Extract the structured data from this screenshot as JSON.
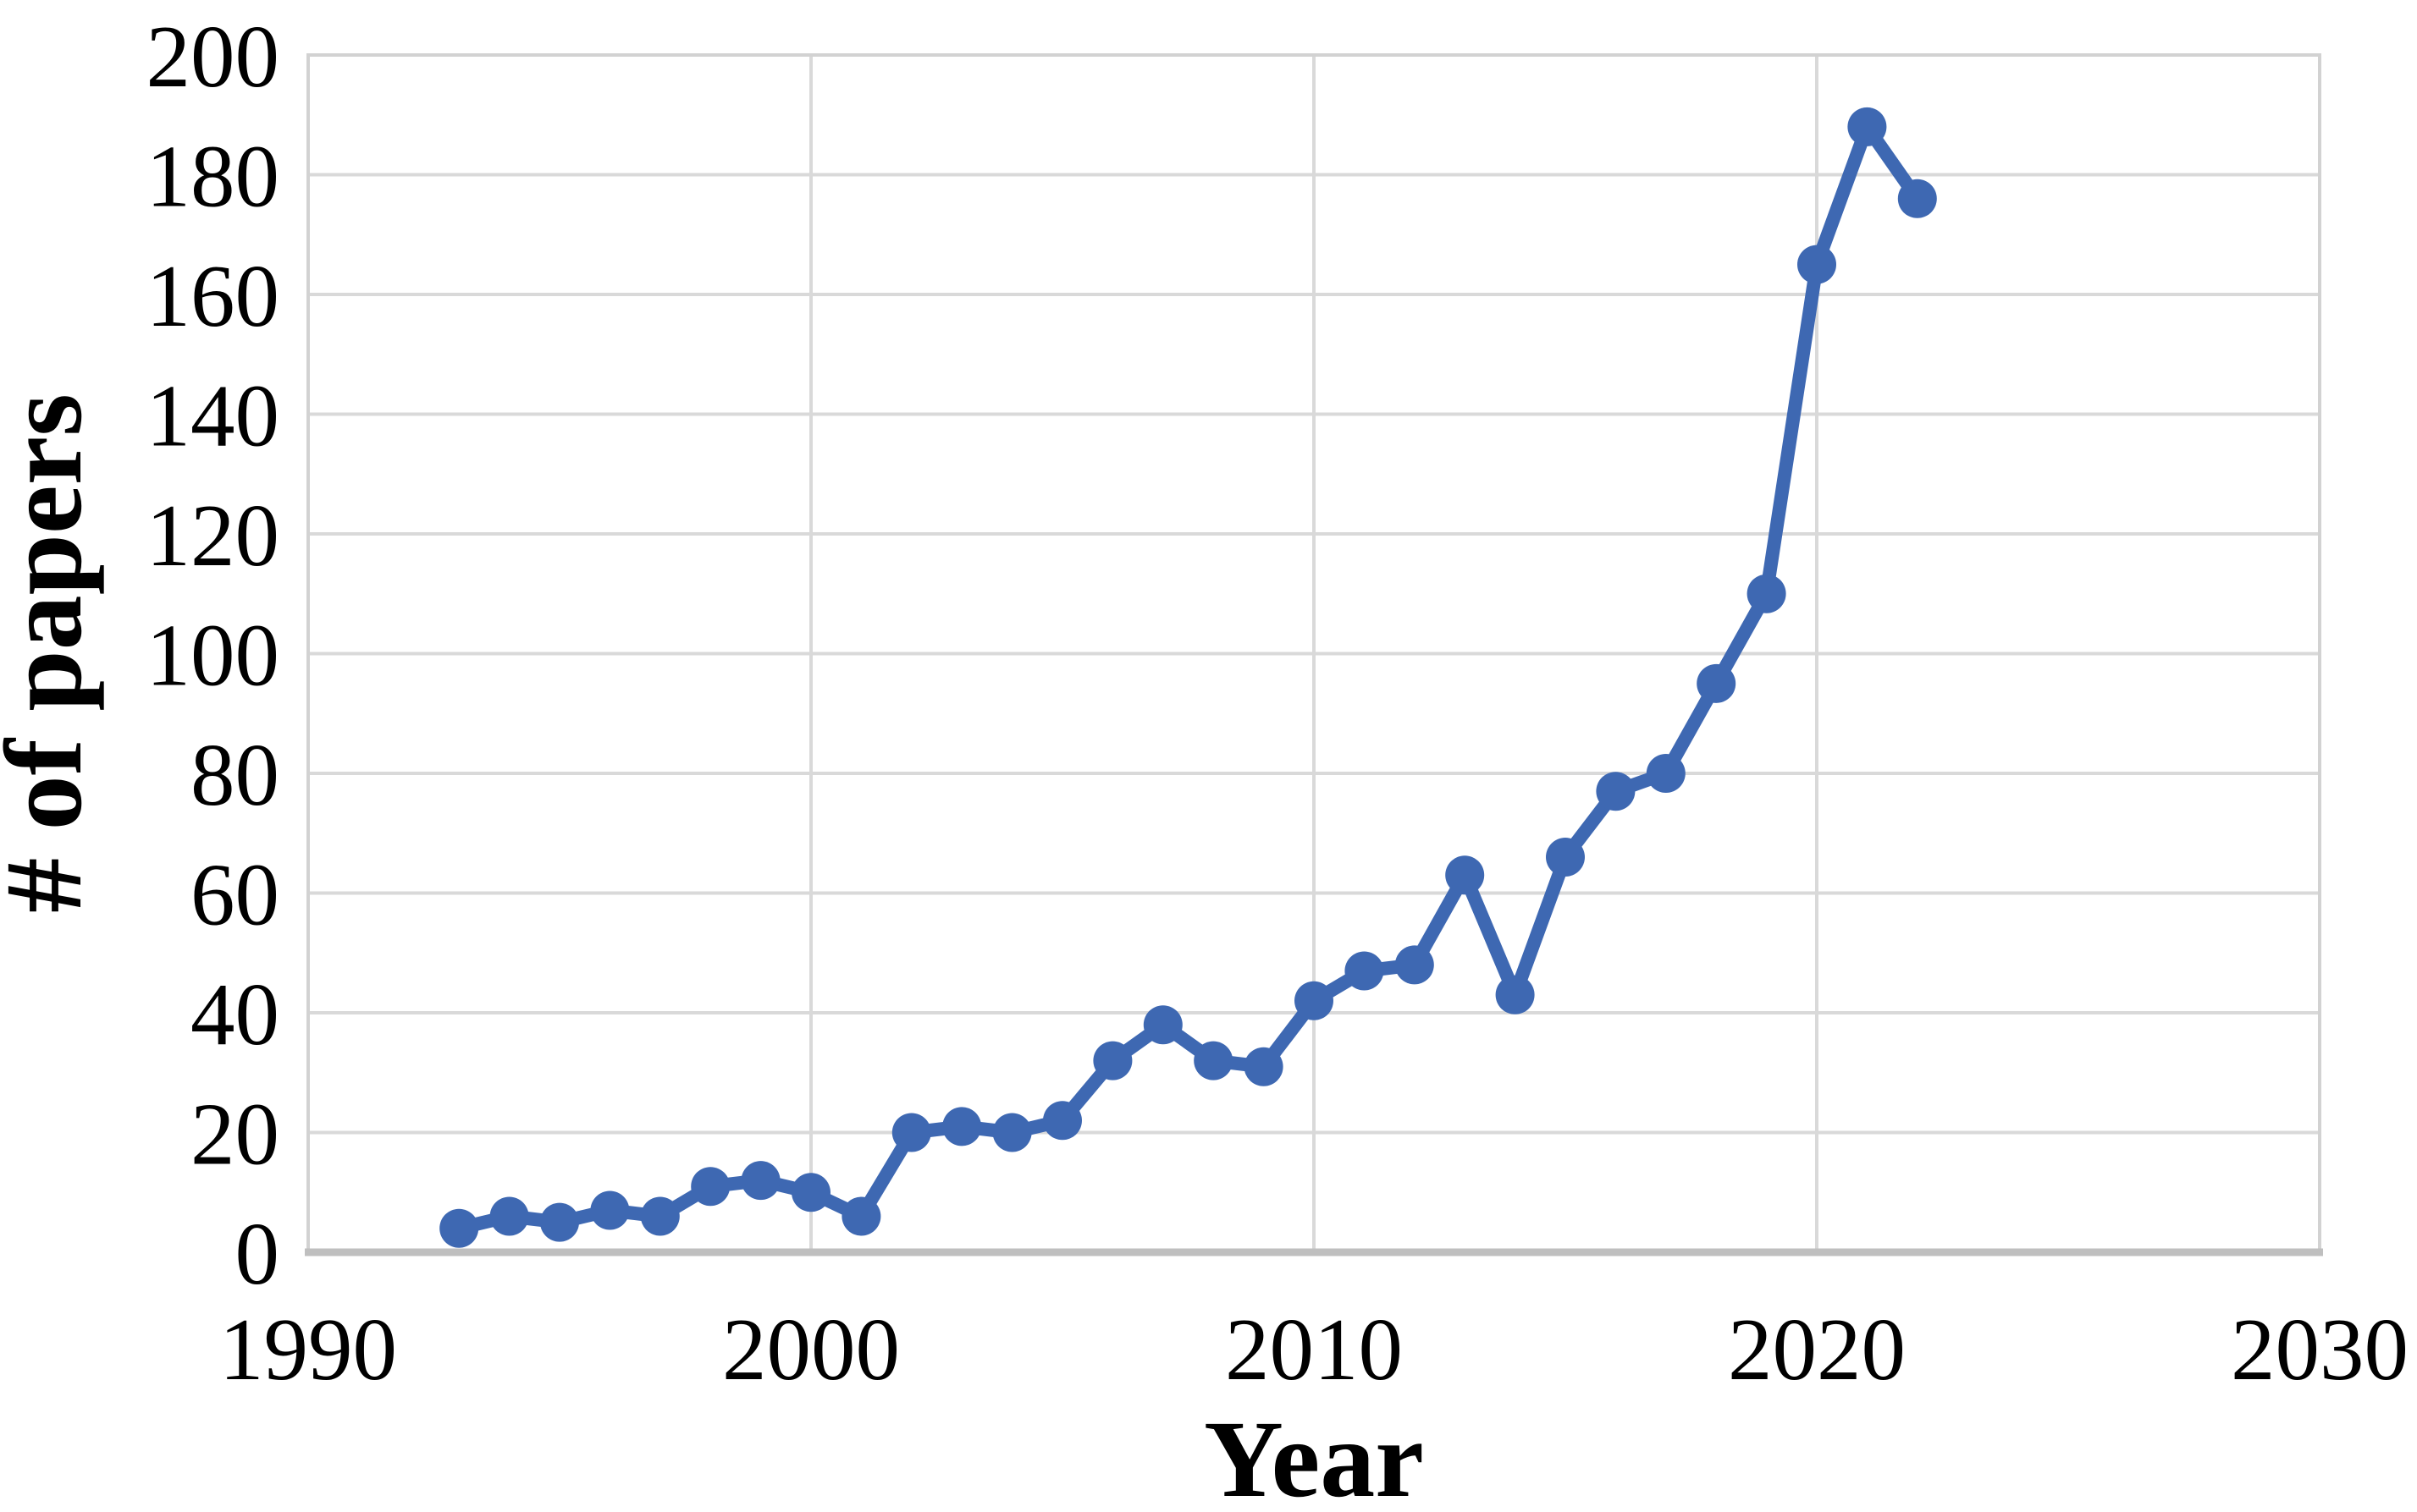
{
  "page": {
    "background": "#FFFFFF"
  },
  "chart_data": {
    "type": "line",
    "title": "",
    "xlabel": "Year",
    "ylabel": "# of papers",
    "x": [
      1993,
      1994,
      1995,
      1996,
      1997,
      1998,
      1999,
      2000,
      2001,
      2002,
      2003,
      2004,
      2005,
      2006,
      2007,
      2008,
      2009,
      2010,
      2011,
      2012,
      2013,
      2014,
      2015,
      2016,
      2017,
      2018,
      2019,
      2020,
      2021,
      2022
    ],
    "values": [
      4,
      6,
      5,
      7,
      6,
      11,
      12,
      10,
      6,
      20,
      21,
      20,
      22,
      32,
      38,
      32,
      31,
      42,
      47,
      48,
      63,
      43,
      66,
      77,
      80,
      95,
      110,
      165,
      188,
      176
    ],
    "xlim": [
      1990,
      2030
    ],
    "ylim": [
      0,
      200
    ],
    "x_ticks": [
      1990,
      2000,
      2010,
      2020,
      2030
    ],
    "y_ticks": [
      0,
      20,
      40,
      60,
      80,
      100,
      120,
      140,
      160,
      180,
      200
    ],
    "grid": "on",
    "legend": "none",
    "marker": "circle",
    "series_color": "#3E68B2",
    "gridline_color": "#D9D9D9",
    "plot_border_color": "#D2D2D2",
    "axis_line_color": "#BFBFBF",
    "text_color": "#000000"
  }
}
